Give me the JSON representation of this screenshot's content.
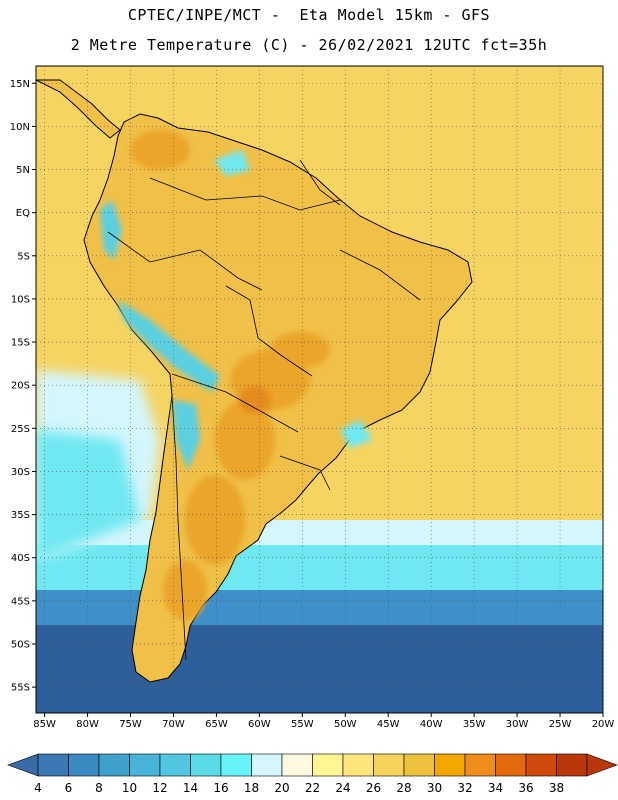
{
  "header": {
    "line1": "CPTEC/INPE/MCT -  Eta Model 15km - GFS",
    "line2": "2 Metre Temperature (C) - 26/02/2021 12UTC fct=35h"
  },
  "map": {
    "variable": "2 Metre Temperature",
    "units": "C",
    "model": "Eta Model 15km - GFS",
    "lon_range": [
      -86,
      -20
    ],
    "lat_range": [
      -58,
      17
    ],
    "lat_labels": [
      {
        "value": 15,
        "label": "15N"
      },
      {
        "value": 10,
        "label": "10N"
      },
      {
        "value": 5,
        "label": "5N"
      },
      {
        "value": 0,
        "label": "EQ"
      },
      {
        "value": -5,
        "label": "5S"
      },
      {
        "value": -10,
        "label": "10S"
      },
      {
        "value": -15,
        "label": "15S"
      },
      {
        "value": -20,
        "label": "20S"
      },
      {
        "value": -25,
        "label": "25S"
      },
      {
        "value": -30,
        "label": "30S"
      },
      {
        "value": -35,
        "label": "35S"
      },
      {
        "value": -40,
        "label": "40S"
      },
      {
        "value": -45,
        "label": "45S"
      },
      {
        "value": -50,
        "label": "50S"
      },
      {
        "value": -55,
        "label": "55S"
      }
    ],
    "lon_labels": [
      {
        "value": -85,
        "label": "85W"
      },
      {
        "value": -80,
        "label": "80W"
      },
      {
        "value": -75,
        "label": "75W"
      },
      {
        "value": -70,
        "label": "70W"
      },
      {
        "value": -65,
        "label": "65W"
      },
      {
        "value": -60,
        "label": "60W"
      },
      {
        "value": -55,
        "label": "55W"
      },
      {
        "value": -50,
        "label": "50W"
      },
      {
        "value": -45,
        "label": "45W"
      },
      {
        "value": -40,
        "label": "40W"
      },
      {
        "value": -35,
        "label": "35W"
      },
      {
        "value": -30,
        "label": "30W"
      },
      {
        "value": -25,
        "label": "25W"
      },
      {
        "value": -20,
        "label": "20W"
      }
    ]
  },
  "colorbar": {
    "levels": [
      "4",
      "6",
      "8",
      "10",
      "12",
      "14",
      "16",
      "18",
      "20",
      "22",
      "24",
      "26",
      "28",
      "30",
      "32",
      "34",
      "36",
      "38"
    ],
    "colors": [
      "#3b78b4",
      "#3b8ac2",
      "#3fa0cc",
      "#4ab4d8",
      "#52c6e0",
      "#5bdbe8",
      "#66f4f8",
      "#d4f6fd",
      "#fff8e0",
      "#fff595",
      "#fde57c",
      "#f6d35a",
      "#eec040",
      "#f2a800",
      "#ee8c1c",
      "#e26a0c",
      "#d0480a",
      "#b8380a"
    ],
    "left_arrow_color": "#3a6aa8",
    "right_arrow_color": "#b8380a"
  },
  "palette": {
    "ocean_deep": "#2f5f9a",
    "ocean_mid": "#3f8fc8",
    "ocean_cyan": "#6fe8f2",
    "ocean_light": "#d4f6fd",
    "warm_base": "#f5d462",
    "land_mid": "#f0c048",
    "land_hot": "#eba52a",
    "land_hotter": "#e58a1c",
    "cool_high": "#5bcfe0",
    "border_color": "#000000"
  }
}
